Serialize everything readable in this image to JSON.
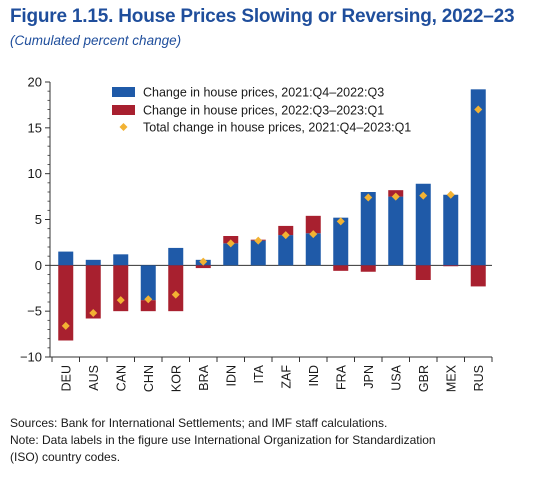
{
  "header": {
    "title": "Figure 1.15.  House Prices Slowing or Reversing, 2022–23",
    "subtitle": "(Cumulated percent change)"
  },
  "notes": {
    "sources": "Sources: Bank for International Settlements; and IMF staff calculations.",
    "note_line1": "Note: Data labels in the figure use International Organization for Standardization",
    "note_line2": "(ISO) country codes."
  },
  "colors": {
    "series1": "#1f5aa8",
    "series2": "#a8202f",
    "series3": "#f2b233"
  },
  "chart_data": {
    "type": "bar",
    "stacked": true,
    "categories": [
      "DEU",
      "AUS",
      "CAN",
      "CHN",
      "KOR",
      "BRA",
      "IDN",
      "ITA",
      "ZAF",
      "IND",
      "FRA",
      "JPN",
      "USA",
      "GBR",
      "MEX",
      "RUS"
    ],
    "series": [
      {
        "name": "Change in house prices, 2021:Q4–2022:Q3",
        "kind": "bar",
        "values": [
          1.5,
          0.6,
          1.2,
          -3.8,
          1.9,
          0.6,
          2.4,
          2.7,
          3.3,
          3.5,
          5.2,
          8.0,
          7.5,
          8.9,
          7.7,
          19.2
        ]
      },
      {
        "name": "Change in house prices, 2022:Q3–2023:Q1",
        "kind": "bar",
        "values": [
          -8.2,
          -5.8,
          -5.0,
          -1.2,
          -5.0,
          -0.3,
          0.8,
          0.1,
          1.0,
          1.9,
          -0.6,
          -0.7,
          0.7,
          -1.6,
          -0.1,
          -2.3
        ]
      },
      {
        "name": "Total change in house prices, 2021:Q4–2023:Q1",
        "kind": "marker",
        "values": [
          -6.6,
          -5.2,
          -3.8,
          -3.7,
          -3.2,
          0.4,
          2.4,
          2.7,
          3.3,
          3.4,
          4.8,
          7.4,
          7.5,
          7.6,
          7.7,
          17.0
        ]
      }
    ],
    "y_ticks": [
      20,
      15,
      10,
      5,
      0,
      -5,
      -10
    ],
    "y_tick_labels": [
      "20",
      "15",
      "10",
      "5",
      "0",
      "−5",
      "−10"
    ],
    "ylim": [
      -10,
      20
    ],
    "legend_position": "top-left"
  }
}
